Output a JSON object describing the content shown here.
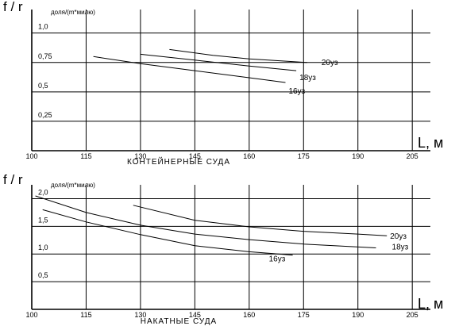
{
  "chart_data": [
    {
      "type": "line",
      "title": "КОНТЕЙНЕРНЫЕ СУДА",
      "ylabel": "f / r",
      "yunit": "доля/(m*милю)",
      "xlabel": "L, м",
      "x_ticks": [
        "100",
        "115",
        "130",
        "145",
        "160",
        "175",
        "190",
        "205"
      ],
      "y_ticks": [
        "0,25",
        "0,5",
        "0,75",
        "1,0"
      ],
      "xlim": [
        100,
        210
      ],
      "ylim": [
        0,
        1.2
      ],
      "grid": true,
      "series": [
        {
          "name": "16уз",
          "x": [
            117,
            130,
            145,
            160,
            170
          ],
          "y": [
            0.8,
            0.74,
            0.68,
            0.62,
            0.58
          ]
        },
        {
          "name": "18уз",
          "x": [
            130,
            145,
            160,
            173
          ],
          "y": [
            0.82,
            0.77,
            0.72,
            0.68
          ]
        },
        {
          "name": "20уз",
          "x": [
            138,
            150,
            160,
            176
          ],
          "y": [
            0.86,
            0.81,
            0.78,
            0.75
          ]
        }
      ]
    },
    {
      "type": "line",
      "title": "НАКАТНЫЕ СУДА",
      "ylabel": "f / r",
      "yunit": "доля/(m*милю)",
      "xlabel": "L, м",
      "x_ticks": [
        "100",
        "115",
        "130",
        "145",
        "160",
        "175",
        "190",
        "205"
      ],
      "y_ticks": [
        "0,5",
        "1,0",
        "1,5",
        "2,0"
      ],
      "xlim": [
        100,
        210
      ],
      "ylim": [
        0,
        2.25
      ],
      "grid": true,
      "series": [
        {
          "name": "16уз",
          "x": [
            103,
            115,
            130,
            145,
            160,
            172
          ],
          "y": [
            1.8,
            1.58,
            1.35,
            1.15,
            1.04,
            0.98
          ]
        },
        {
          "name": "18уз",
          "x": [
            101,
            115,
            130,
            145,
            160,
            175,
            195
          ],
          "y": [
            2.05,
            1.75,
            1.52,
            1.36,
            1.26,
            1.18,
            1.11
          ]
        },
        {
          "name": "20уз",
          "x": [
            128,
            145,
            160,
            175,
            190,
            198
          ],
          "y": [
            1.88,
            1.61,
            1.49,
            1.41,
            1.36,
            1.33
          ]
        }
      ]
    }
  ]
}
